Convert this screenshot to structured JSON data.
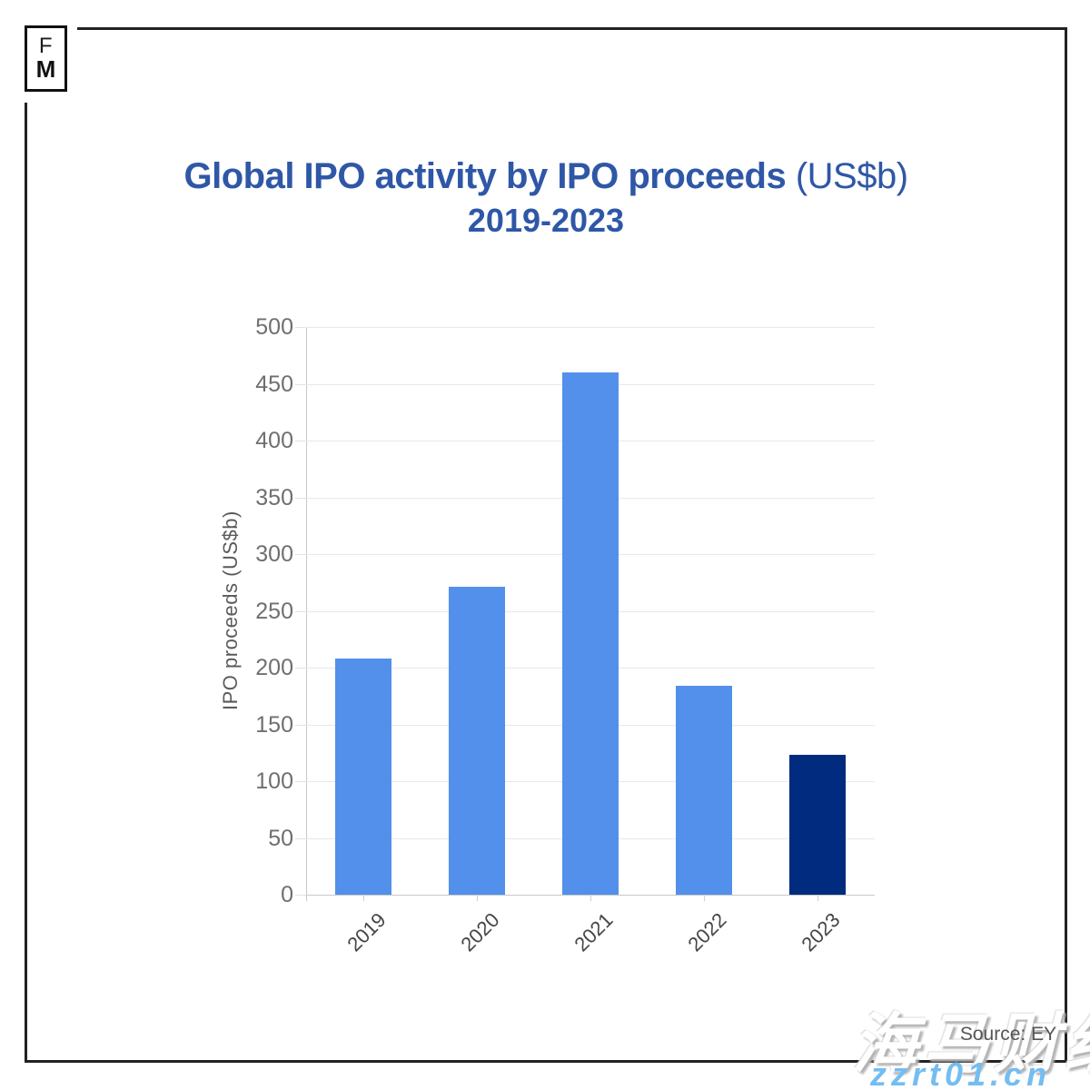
{
  "logo": {
    "letter_top": "F",
    "letter_bottom": "M"
  },
  "header": {
    "title_main": "Global IPO activity by IPO proceeds",
    "title_suffix": " (US$b)",
    "subtitle": "2019-2023"
  },
  "chart_data": {
    "type": "bar",
    "title": "Global IPO activity by IPO proceeds (US$b)",
    "subtitle": "2019-2023",
    "categories": [
      "2019",
      "2020",
      "2021",
      "2022",
      "2023"
    ],
    "values": [
      208,
      271,
      460,
      184,
      123
    ],
    "xlabel": "",
    "ylabel": "IPO proceeds (US$b)",
    "ylim": [
      0,
      500
    ],
    "yticks": [
      0,
      50,
      100,
      150,
      200,
      250,
      300,
      350,
      400,
      450,
      500
    ],
    "grid": true,
    "legend_position": "none",
    "bar_color_default": "#5290ec",
    "bar_color_last": "#002b7e",
    "source": "Source: EY"
  },
  "footer": {
    "source_label": "Source: EY",
    "watermark_cn": "海马财经",
    "watermark_url": "zzrt01.cn"
  },
  "colors": {
    "title_blue": "#2f57a7",
    "bar_blue": "#5290ec",
    "bar_navy": "#002b7e",
    "watermark_blue": "#74bdf0",
    "frame_black": "#222222"
  }
}
